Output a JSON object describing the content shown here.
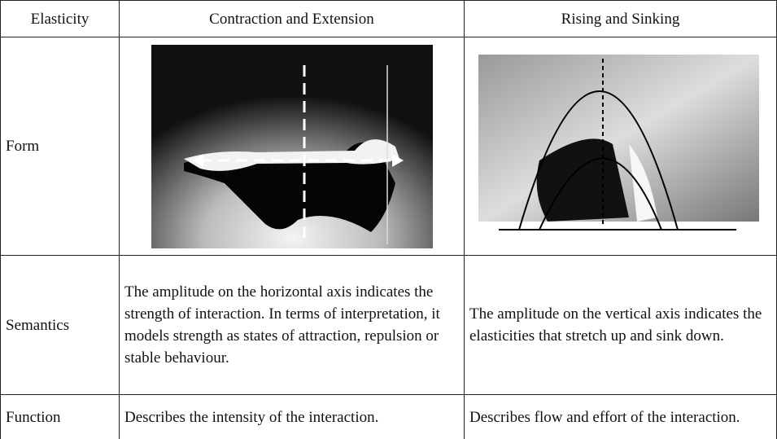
{
  "table": {
    "header": [
      "Elasticity",
      "Contraction and Extension",
      "Rising and Sinking"
    ],
    "rows": [
      [
        "Form"
      ],
      [
        "Semantics",
        "The amplitude on the horizontal axis indicates the strength of interaction. In terms of interpretation, it models strength as states of attraction, repulsion or stable behaviour.",
        "The amplitude on the vertical axis indicates the elasticities that stretch up and sink down."
      ],
      [
        "Function",
        "Describes the intensity of the interaction.",
        "Describes flow and effort of the interaction."
      ]
    ]
  }
}
